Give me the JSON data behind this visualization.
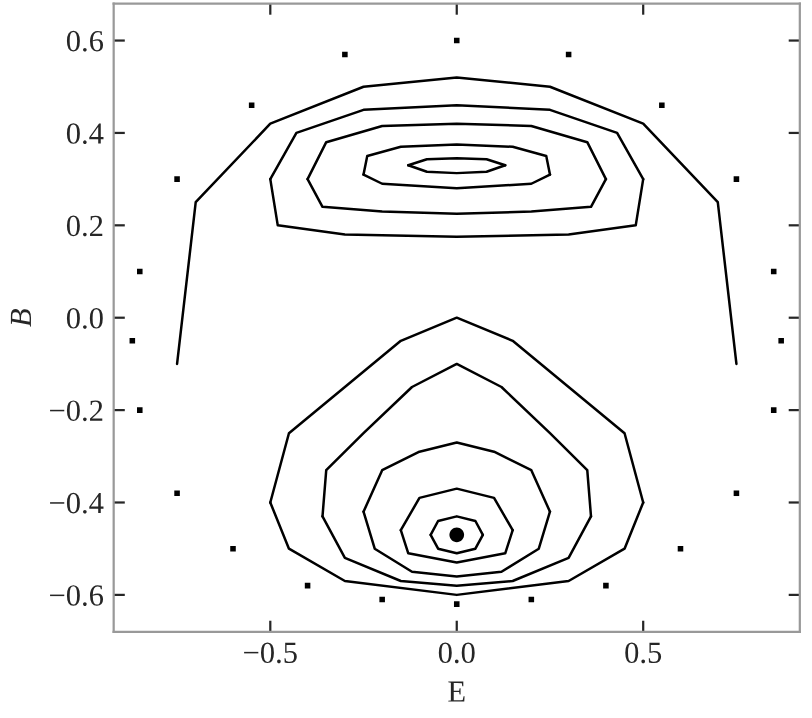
{
  "chart_data": {
    "type": "line",
    "xlabel": "E",
    "ylabel": "B",
    "xlim": [
      -0.92,
      0.92
    ],
    "ylim": [
      -0.68,
      0.68
    ],
    "xticks": [
      {
        "value": -0.5,
        "label": "−0.5"
      },
      {
        "value": 0.0,
        "label": "0.0"
      },
      {
        "value": 0.5,
        "label": "0.5"
      }
    ],
    "yticks": [
      {
        "value": -0.6,
        "label": "−0.6"
      },
      {
        "value": -0.4,
        "label": "−0.4"
      },
      {
        "value": -0.2,
        "label": "−0.2"
      },
      {
        "value": 0.0,
        "label": "0.0"
      },
      {
        "value": 0.2,
        "label": "0.2"
      },
      {
        "value": 0.4,
        "label": "0.4"
      },
      {
        "value": 0.6,
        "label": "0.6"
      }
    ],
    "marker": "none",
    "line_style": "solid",
    "series": [
      {
        "color": "#000000",
        "x": [
          -0.13,
          -0.08,
          0,
          0.08,
          0.13
        ],
        "values": [
          0.33,
          0.343,
          0.345,
          0.343,
          0.33
        ]
      },
      {
        "color": "#000000",
        "x": [
          -0.13,
          -0.08,
          0,
          0.08,
          0.13
        ],
        "values": [
          0.33,
          0.316,
          0.313,
          0.316,
          0.33
        ]
      },
      {
        "color": "#000000",
        "x": [
          -0.25,
          -0.24,
          -0.15,
          0,
          0.15,
          0.24,
          0.25
        ],
        "values": [
          0.31,
          0.35,
          0.37,
          0.375,
          0.37,
          0.35,
          0.31
        ]
      },
      {
        "color": "#000000",
        "x": [
          -0.25,
          -0.2,
          0,
          0.2,
          0.25
        ],
        "values": [
          0.31,
          0.29,
          0.28,
          0.29,
          0.31
        ]
      },
      {
        "color": "#000000",
        "x": [
          -0.4,
          -0.35,
          -0.2,
          0,
          0.2,
          0.35,
          0.4
        ],
        "values": [
          0.3,
          0.38,
          0.415,
          0.42,
          0.415,
          0.38,
          0.3
        ]
      },
      {
        "color": "#000000",
        "x": [
          -0.4,
          -0.36,
          -0.2,
          0,
          0.2,
          0.36,
          0.4
        ],
        "values": [
          0.3,
          0.24,
          0.23,
          0.225,
          0.23,
          0.24,
          0.3
        ]
      },
      {
        "color": "#000000",
        "x": [
          -0.5,
          -0.43,
          -0.25,
          0,
          0.25,
          0.43,
          0.5
        ],
        "values": [
          0.3,
          0.4,
          0.45,
          0.46,
          0.45,
          0.4,
          0.3
        ]
      },
      {
        "color": "#000000",
        "x": [
          -0.5,
          -0.48,
          -0.3,
          0,
          0.3,
          0.48,
          0.5
        ],
        "values": [
          0.3,
          0.2,
          0.18,
          0.175,
          0.18,
          0.2,
          0.3
        ]
      },
      {
        "color": "#000000",
        "x": [
          -0.07,
          -0.05,
          0,
          0.05,
          0.07
        ],
        "values": [
          -0.47,
          -0.44,
          -0.43,
          -0.44,
          -0.47
        ]
      },
      {
        "color": "#000000",
        "x": [
          -0.07,
          -0.05,
          0,
          0.05,
          0.07
        ],
        "values": [
          -0.47,
          -0.5,
          -0.51,
          -0.5,
          -0.47
        ]
      },
      {
        "color": "#000000",
        "x": [
          -0.15,
          -0.1,
          0,
          0.1,
          0.15
        ],
        "values": [
          -0.46,
          -0.39,
          -0.37,
          -0.39,
          -0.46
        ]
      },
      {
        "color": "#000000",
        "x": [
          -0.15,
          -0.13,
          0,
          0.13,
          0.15
        ],
        "values": [
          -0.46,
          -0.51,
          -0.53,
          -0.51,
          -0.46
        ]
      },
      {
        "color": "#000000",
        "x": [
          -0.25,
          -0.2,
          -0.1,
          0,
          0.1,
          0.2,
          0.25
        ],
        "values": [
          -0.42,
          -0.33,
          -0.29,
          -0.27,
          -0.29,
          -0.33,
          -0.42
        ]
      },
      {
        "color": "#000000",
        "x": [
          -0.25,
          -0.22,
          -0.12,
          0,
          0.12,
          0.22,
          0.25
        ],
        "values": [
          -0.42,
          -0.5,
          -0.55,
          -0.56,
          -0.55,
          -0.5,
          -0.42
        ]
      },
      {
        "color": "#000000",
        "x": [
          -0.36,
          -0.35,
          -0.25,
          -0.12,
          0,
          0.12,
          0.25,
          0.35,
          0.36
        ],
        "values": [
          -0.43,
          -0.33,
          -0.25,
          -0.15,
          -0.1,
          -0.15,
          -0.25,
          -0.33,
          -0.43
        ]
      },
      {
        "color": "#000000",
        "x": [
          -0.36,
          -0.3,
          -0.15,
          0,
          0.15,
          0.3,
          0.36
        ],
        "values": [
          -0.43,
          -0.52,
          -0.57,
          -0.58,
          -0.57,
          -0.52,
          -0.43
        ]
      },
      {
        "color": "#000000",
        "x": [
          -0.5,
          -0.45,
          -0.3,
          -0.15,
          0,
          0.15,
          0.3,
          0.45,
          0.5
        ],
        "values": [
          -0.4,
          -0.25,
          -0.15,
          -0.05,
          0,
          -0.05,
          -0.15,
          -0.25,
          -0.4
        ]
      },
      {
        "color": "#000000",
        "x": [
          -0.5,
          -0.45,
          -0.3,
          0,
          0.3,
          0.45,
          0.5
        ],
        "values": [
          -0.4,
          -0.5,
          -0.57,
          -0.6,
          -0.57,
          -0.5,
          -0.4
        ]
      },
      {
        "color": "#000000",
        "x": [
          -0.75,
          -0.7,
          -0.5,
          -0.25,
          0,
          0.25,
          0.5,
          0.7,
          0.75
        ],
        "values": [
          -0.1,
          0.25,
          0.42,
          0.5,
          0.52,
          0.5,
          0.42,
          0.25,
          -0.1
        ]
      },
      {
        "type": "scatter",
        "marker": "square",
        "color": "#000000",
        "x": [
          -0.87,
          -0.85,
          -0.75,
          -0.55,
          -0.3,
          0,
          0.3,
          0.55,
          0.75,
          0.85,
          0.87,
          -0.85,
          -0.75,
          -0.6,
          -0.4,
          -0.2,
          0,
          0.2,
          0.4,
          0.6,
          0.75,
          0.85
        ],
        "values": [
          -0.05,
          0.1,
          0.3,
          0.46,
          0.57,
          0.6,
          0.57,
          0.46,
          0.3,
          0.1,
          -0.05,
          -0.2,
          -0.38,
          -0.5,
          -0.58,
          -0.61,
          -0.62,
          -0.61,
          -0.58,
          -0.5,
          -0.38,
          -0.2
        ]
      },
      {
        "type": "scatter",
        "marker": "circle",
        "color": "#000000",
        "x": [
          0
        ],
        "values": [
          -0.47
        ]
      }
    ]
  }
}
